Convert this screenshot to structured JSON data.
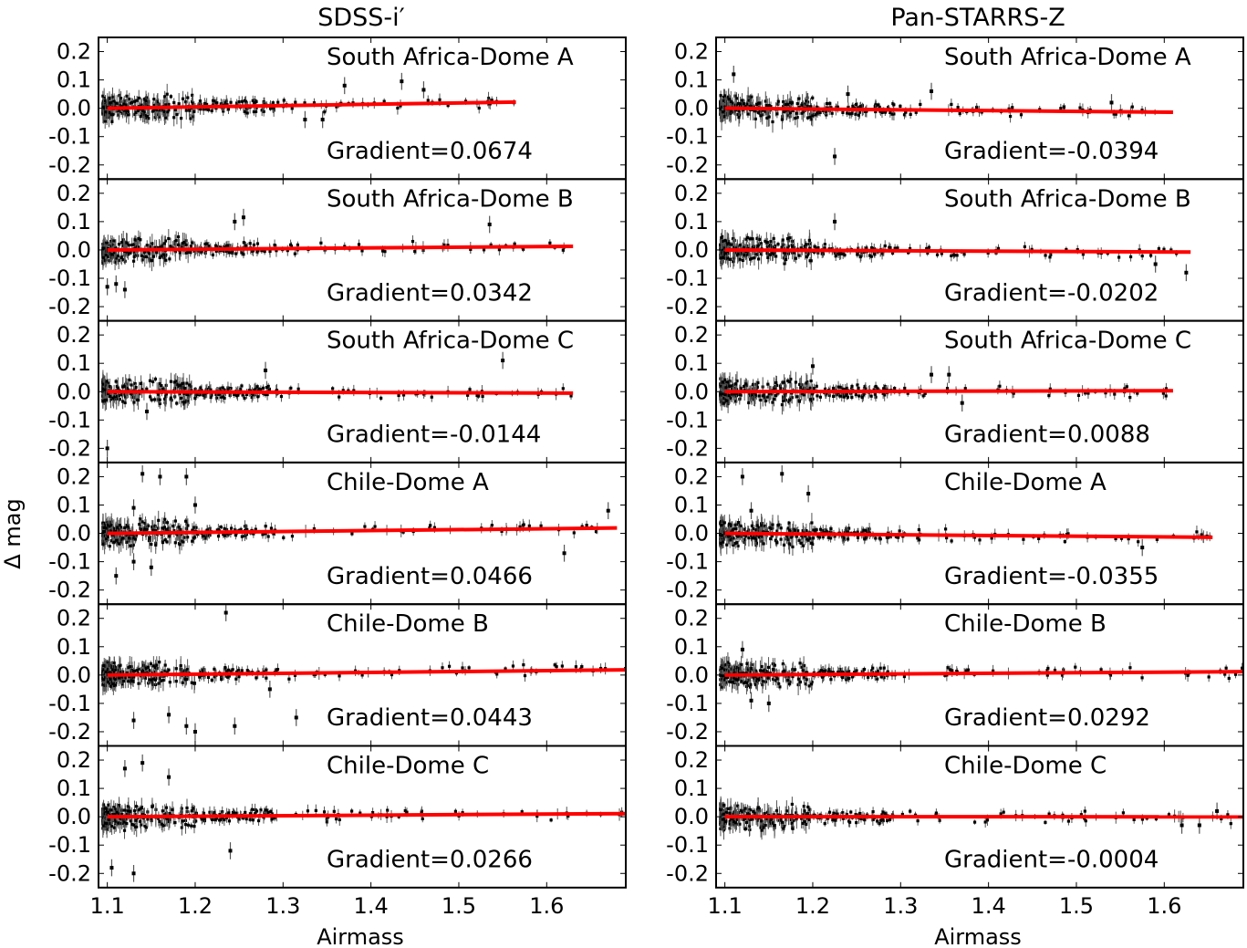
{
  "figure": {
    "ylabel": "Δ mag",
    "xlabel": "Airmass",
    "column_titles": [
      "SDSS-i′",
      "Pan-STARRS-Z"
    ],
    "fit_color": "#ff0000",
    "point_color": "#000000",
    "errorbar_color": "#555555"
  },
  "chart_data": [
    {
      "type": "scatter",
      "column": "SDSS-i′",
      "panel": "South Africa-Dome A",
      "gradient_label": "Gradient=0.0674",
      "gradient": 0.0674,
      "xlim": [
        1.09,
        1.69
      ],
      "ylim": [
        -0.25,
        0.25
      ],
      "fit_x": [
        1.1,
        1.565
      ],
      "outliers": [
        {
          "x": 1.37,
          "y": 0.08
        },
        {
          "x": 1.435,
          "y": 0.095
        },
        {
          "x": 1.46,
          "y": 0.065
        },
        {
          "x": 1.325,
          "y": -0.04
        },
        {
          "x": 1.345,
          "y": -0.04
        }
      ]
    },
    {
      "type": "scatter",
      "column": "SDSS-i′",
      "panel": "South Africa-Dome B",
      "gradient_label": "Gradient=0.0342",
      "gradient": 0.0342,
      "xlim": [
        1.09,
        1.69
      ],
      "ylim": [
        -0.25,
        0.25
      ],
      "fit_x": [
        1.1,
        1.63
      ],
      "outliers": [
        {
          "x": 1.245,
          "y": 0.1
        },
        {
          "x": 1.255,
          "y": 0.115
        },
        {
          "x": 1.535,
          "y": 0.09
        },
        {
          "x": 1.1,
          "y": -0.13
        },
        {
          "x": 1.11,
          "y": -0.12
        },
        {
          "x": 1.12,
          "y": -0.14
        }
      ]
    },
    {
      "type": "scatter",
      "column": "SDSS-i′",
      "panel": "South Africa-Dome C",
      "gradient_label": "Gradient=-0.0144",
      "gradient": -0.0144,
      "xlim": [
        1.09,
        1.69
      ],
      "ylim": [
        -0.25,
        0.25
      ],
      "fit_x": [
        1.1,
        1.63
      ],
      "outliers": [
        {
          "x": 1.55,
          "y": 0.11
        },
        {
          "x": 1.28,
          "y": 0.075
        },
        {
          "x": 1.1,
          "y": -0.2
        },
        {
          "x": 1.145,
          "y": -0.07
        }
      ]
    },
    {
      "type": "scatter",
      "column": "SDSS-i′",
      "panel": "Chile-Dome A",
      "gradient_label": "Gradient=0.0466",
      "gradient": 0.0466,
      "xlim": [
        1.09,
        1.69
      ],
      "ylim": [
        -0.25,
        0.25
      ],
      "fit_x": [
        1.1,
        1.68
      ],
      "outliers": [
        {
          "x": 1.14,
          "y": 0.21
        },
        {
          "x": 1.16,
          "y": 0.2
        },
        {
          "x": 1.19,
          "y": 0.2
        },
        {
          "x": 1.2,
          "y": 0.1
        },
        {
          "x": 1.13,
          "y": 0.09
        },
        {
          "x": 1.11,
          "y": -0.15
        },
        {
          "x": 1.15,
          "y": -0.12
        },
        {
          "x": 1.13,
          "y": -0.1
        },
        {
          "x": 1.62,
          "y": -0.07
        },
        {
          "x": 1.67,
          "y": 0.08
        }
      ]
    },
    {
      "type": "scatter",
      "column": "SDSS-i′",
      "panel": "Chile-Dome B",
      "gradient_label": "Gradient=0.0443",
      "gradient": 0.0443,
      "xlim": [
        1.09,
        1.69
      ],
      "ylim": [
        -0.25,
        0.25
      ],
      "fit_x": [
        1.1,
        1.69
      ],
      "outliers": [
        {
          "x": 1.235,
          "y": 0.22
        },
        {
          "x": 1.17,
          "y": -0.14
        },
        {
          "x": 1.19,
          "y": -0.18
        },
        {
          "x": 1.2,
          "y": -0.2
        },
        {
          "x": 1.13,
          "y": -0.16
        },
        {
          "x": 1.245,
          "y": -0.18
        },
        {
          "x": 1.315,
          "y": -0.15
        },
        {
          "x": 1.285,
          "y": -0.05
        }
      ]
    },
    {
      "type": "scatter",
      "column": "SDSS-i′",
      "panel": "Chile-Dome C",
      "gradient_label": "Gradient=0.0266",
      "gradient": 0.0266,
      "xlim": [
        1.09,
        1.69
      ],
      "ylim": [
        -0.25,
        0.25
      ],
      "fit_x": [
        1.1,
        1.69
      ],
      "outliers": [
        {
          "x": 1.12,
          "y": 0.17
        },
        {
          "x": 1.14,
          "y": 0.19
        },
        {
          "x": 1.17,
          "y": 0.14
        },
        {
          "x": 1.13,
          "y": -0.2
        },
        {
          "x": 1.24,
          "y": -0.12
        },
        {
          "x": 1.105,
          "y": -0.18
        }
      ]
    },
    {
      "type": "scatter",
      "column": "Pan-STARRS-Z",
      "panel": "South Africa-Dome A",
      "gradient_label": "Gradient=-0.0394",
      "gradient": -0.0394,
      "xlim": [
        1.09,
        1.69
      ],
      "ylim": [
        -0.25,
        0.25
      ],
      "fit_x": [
        1.1,
        1.61
      ],
      "outliers": [
        {
          "x": 1.225,
          "y": -0.17
        },
        {
          "x": 1.335,
          "y": 0.06
        },
        {
          "x": 1.24,
          "y": 0.05
        },
        {
          "x": 1.54,
          "y": 0.02
        },
        {
          "x": 1.11,
          "y": 0.12
        }
      ]
    },
    {
      "type": "scatter",
      "column": "Pan-STARRS-Z",
      "panel": "South Africa-Dome B",
      "gradient_label": "Gradient=-0.0202",
      "gradient": -0.0202,
      "xlim": [
        1.09,
        1.69
      ],
      "ylim": [
        -0.25,
        0.25
      ],
      "fit_x": [
        1.1,
        1.63
      ],
      "outliers": [
        {
          "x": 1.225,
          "y": 0.1
        },
        {
          "x": 1.625,
          "y": -0.08
        },
        {
          "x": 1.59,
          "y": -0.05
        }
      ]
    },
    {
      "type": "scatter",
      "column": "Pan-STARRS-Z",
      "panel": "South Africa-Dome C",
      "gradient_label": "Gradient=0.0088",
      "gradient": 0.0088,
      "xlim": [
        1.09,
        1.69
      ],
      "ylim": [
        -0.25,
        0.25
      ],
      "fit_x": [
        1.1,
        1.61
      ],
      "outliers": [
        {
          "x": 1.2,
          "y": 0.09
        },
        {
          "x": 1.37,
          "y": -0.04
        },
        {
          "x": 1.335,
          "y": 0.06
        },
        {
          "x": 1.355,
          "y": 0.06
        }
      ]
    },
    {
      "type": "scatter",
      "column": "Pan-STARRS-Z",
      "panel": "Chile-Dome A",
      "gradient_label": "Gradient=-0.0355",
      "gradient": -0.0355,
      "xlim": [
        1.09,
        1.69
      ],
      "ylim": [
        -0.25,
        0.25
      ],
      "fit_x": [
        1.1,
        1.655
      ],
      "outliers": [
        {
          "x": 1.12,
          "y": 0.2
        },
        {
          "x": 1.165,
          "y": 0.21
        },
        {
          "x": 1.195,
          "y": 0.14
        },
        {
          "x": 1.13,
          "y": 0.08
        },
        {
          "x": 1.575,
          "y": -0.05
        }
      ]
    },
    {
      "type": "scatter",
      "column": "Pan-STARRS-Z",
      "panel": "Chile-Dome B",
      "gradient_label": "Gradient=0.0292",
      "gradient": 0.0292,
      "xlim": [
        1.09,
        1.69
      ],
      "ylim": [
        -0.25,
        0.25
      ],
      "fit_x": [
        1.1,
        1.69
      ],
      "outliers": [
        {
          "x": 1.12,
          "y": 0.09
        },
        {
          "x": 1.13,
          "y": -0.09
        },
        {
          "x": 1.15,
          "y": -0.1
        }
      ]
    },
    {
      "type": "scatter",
      "column": "Pan-STARRS-Z",
      "panel": "Chile-Dome C",
      "gradient_label": "Gradient=-0.0004",
      "gradient": -0.0004,
      "xlim": [
        1.09,
        1.69
      ],
      "ylim": [
        -0.25,
        0.25
      ],
      "fit_x": [
        1.1,
        1.69
      ],
      "outliers": [
        {
          "x": 1.62,
          "y": -0.03
        },
        {
          "x": 1.64,
          "y": -0.03
        },
        {
          "x": 1.66,
          "y": 0.02
        }
      ]
    }
  ]
}
